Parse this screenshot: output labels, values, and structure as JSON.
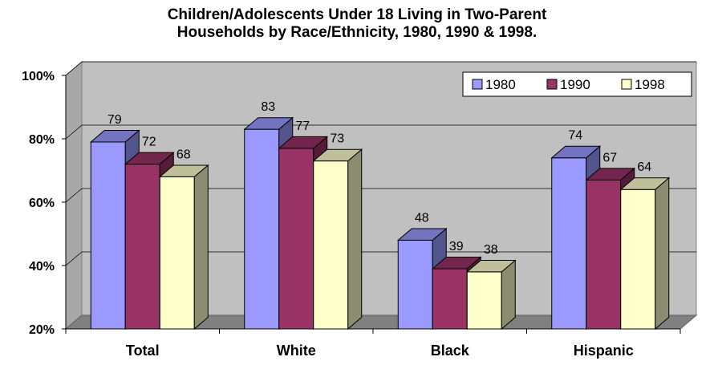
{
  "chart_data": {
    "type": "bar",
    "title_lines": [
      "Children/Adolescents Under 18 Living in Two-Parent",
      "Households by Race/Ethnicity, 1980, 1990 & 1998."
    ],
    "categories": [
      "Total",
      "White",
      "Black",
      "Hispanic"
    ],
    "series": [
      {
        "name": "1980",
        "values": [
          79,
          83,
          48,
          74
        ],
        "color": "#9999FF"
      },
      {
        "name": "1990",
        "values": [
          72,
          77,
          39,
          67
        ],
        "color": "#993366"
      },
      {
        "name": "1998",
        "values": [
          68,
          73,
          38,
          64
        ],
        "color": "#FFFFCC"
      }
    ],
    "y_ticks": [
      "20%",
      "40%",
      "60%",
      "80%",
      "100%"
    ],
    "y_tick_values": [
      20,
      40,
      60,
      80,
      100
    ],
    "ylim": [
      20,
      100
    ],
    "legend_position": "top-right",
    "grid": true,
    "style": "3d-clustered-column",
    "wall_color": "#C0C0C0",
    "floor_color": "#808080"
  }
}
